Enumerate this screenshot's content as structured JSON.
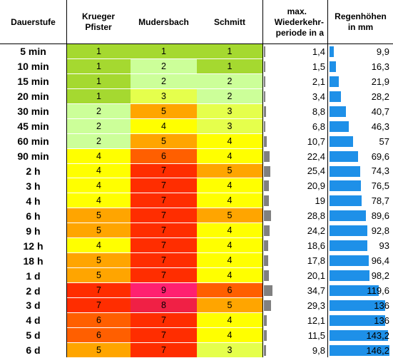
{
  "header": {
    "dauerstufe": "Dauerstufe",
    "krueger_line1": "Krueger",
    "krueger_line2": "Pfister",
    "mudersbach": "Mudersbach",
    "schmitt": "Schmitt",
    "period_line1": "max.",
    "period_line2": "Wiederkehr-",
    "period_line3": "periode in a",
    "rain_line1": "Regenhöhen",
    "rain_line2": "in mm"
  },
  "class_colors": {
    "1": "#a5d930",
    "2": "#ccff99",
    "3": "#e5ff4c",
    "4": "#ffff00",
    "5": "#ffa500",
    "6": "#ff5f00",
    "7": "#ff2d00",
    "8": "#f02045",
    "9": "#ff2070"
  },
  "rows": [
    {
      "label": "5 min",
      "kp": "1",
      "mb": "1",
      "sc": "1",
      "period": "1,4",
      "rain": "9,9"
    },
    {
      "label": "10 min",
      "kp": "1",
      "mb": "2",
      "sc": "1",
      "period": "1,5",
      "rain": "16,3"
    },
    {
      "label": "15 min",
      "kp": "1",
      "mb": "2",
      "sc": "2",
      "period": "2,1",
      "rain": "21,9"
    },
    {
      "label": "20 min",
      "kp": "1",
      "mb": "3",
      "sc": "2",
      "period": "3,4",
      "rain": "28,2"
    },
    {
      "label": "30 min",
      "kp": "2",
      "mb": "5",
      "sc": "3",
      "period": "8,8",
      "rain": "40,7"
    },
    {
      "label": "45 min",
      "kp": "2",
      "mb": "4",
      "sc": "3",
      "period": "6,8",
      "rain": "46,3"
    },
    {
      "label": "60 min",
      "kp": "2",
      "mb": "5",
      "sc": "4",
      "period": "10,7",
      "rain": "57"
    },
    {
      "label": "90 min",
      "kp": "4",
      "mb": "6",
      "sc": "4",
      "period": "22,4",
      "rain": "69,6"
    },
    {
      "label": "2 h",
      "kp": "4",
      "mb": "7",
      "sc": "5",
      "period": "25,4",
      "rain": "74,3"
    },
    {
      "label": "3 h",
      "kp": "4",
      "mb": "7",
      "sc": "4",
      "period": "20,9",
      "rain": "76,5"
    },
    {
      "label": "4 h",
      "kp": "4",
      "mb": "7",
      "sc": "4",
      "period": "19",
      "rain": "78,7"
    },
    {
      "label": "6 h",
      "kp": "5",
      "mb": "7",
      "sc": "5",
      "period": "28,8",
      "rain": "89,6"
    },
    {
      "label": "9 h",
      "kp": "5",
      "mb": "7",
      "sc": "4",
      "period": "24,2",
      "rain": "92,8"
    },
    {
      "label": "12 h",
      "kp": "4",
      "mb": "7",
      "sc": "4",
      "period": "18,6",
      "rain": "93"
    },
    {
      "label": "18 h",
      "kp": "5",
      "mb": "7",
      "sc": "4",
      "period": "17,8",
      "rain": "96,4"
    },
    {
      "label": "1 d",
      "kp": "5",
      "mb": "7",
      "sc": "4",
      "period": "20,1",
      "rain": "98,2"
    },
    {
      "label": "2 d",
      "kp": "7",
      "mb": "9",
      "sc": "6",
      "period": "34,7",
      "rain": "119,6"
    },
    {
      "label": "3 d",
      "kp": "7",
      "mb": "8",
      "sc": "5",
      "period": "29,3",
      "rain": "136"
    },
    {
      "label": "4 d",
      "kp": "6",
      "mb": "7",
      "sc": "4",
      "period": "12,1",
      "rain": "136"
    },
    {
      "label": "5 d",
      "kp": "6",
      "mb": "7",
      "sc": "4",
      "period": "11,5",
      "rain": "143,2"
    },
    {
      "label": "6 d",
      "kp": "5",
      "mb": "7",
      "sc": "3",
      "period": "9,8",
      "rain": "146,2"
    }
  ]
}
